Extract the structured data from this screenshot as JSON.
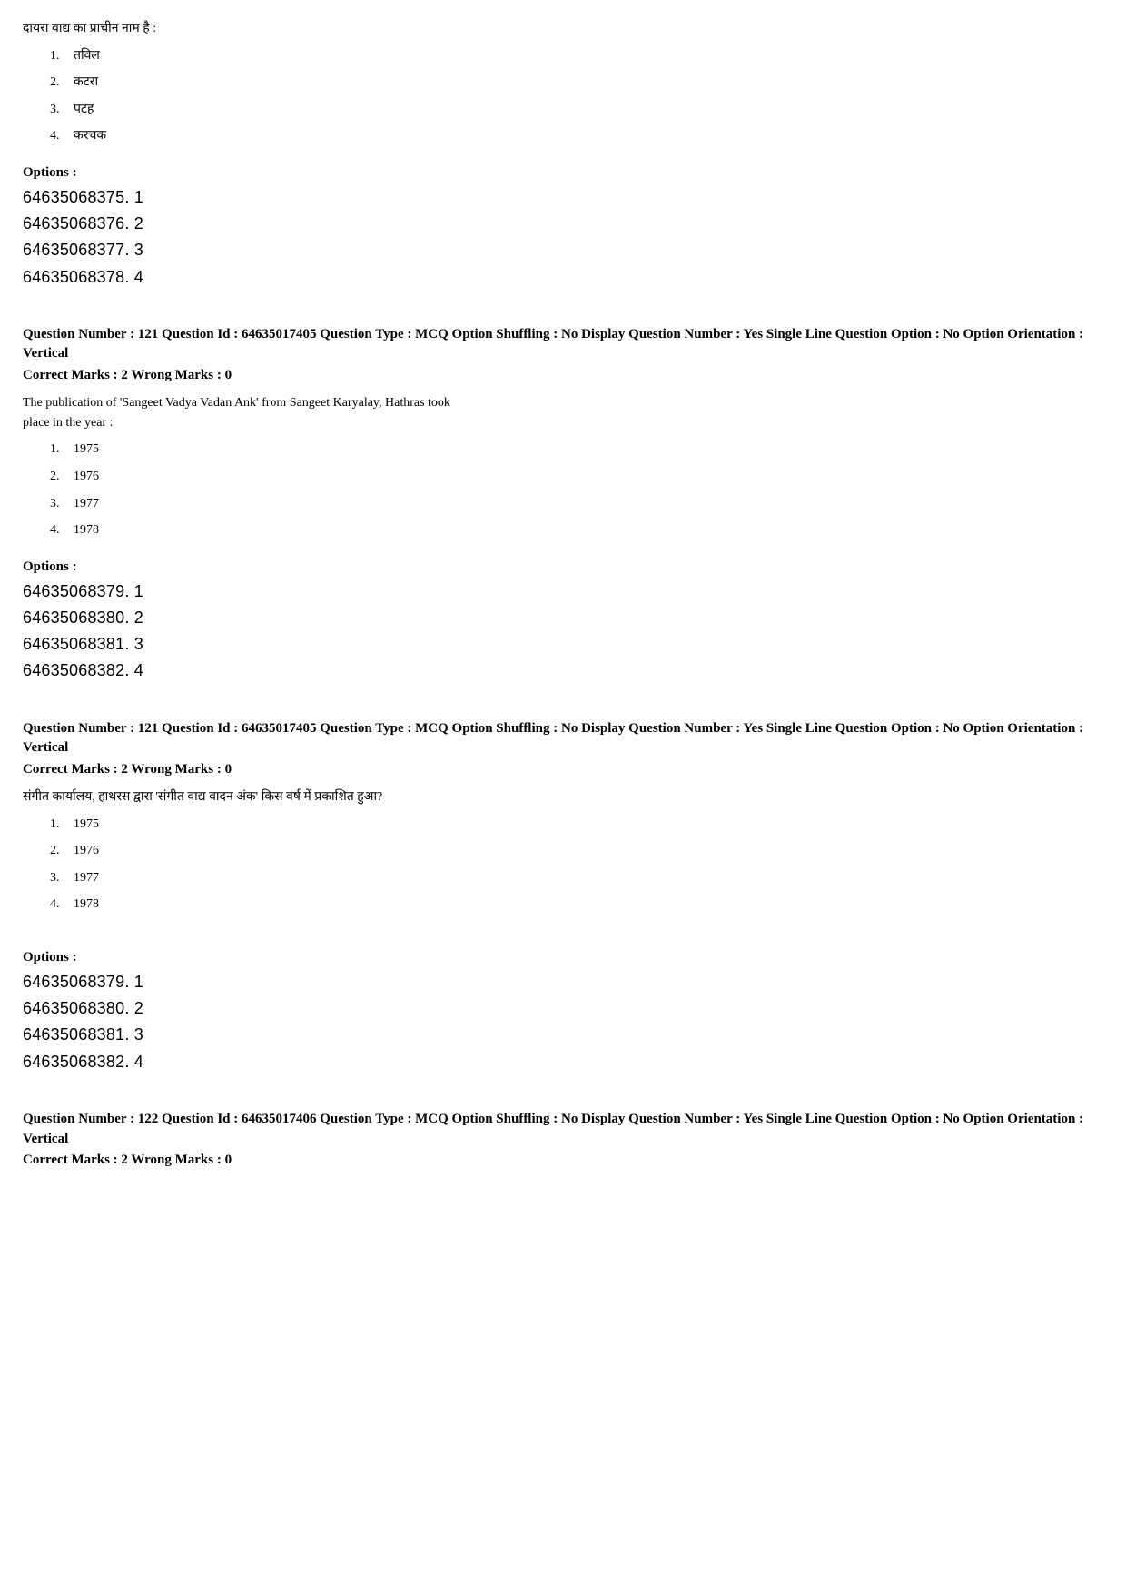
{
  "q120b": {
    "prompt": "दायरा वाद्य का प्राचीन नाम है :",
    "answers": [
      {
        "n": "1.",
        "t": "तविल"
      },
      {
        "n": "2.",
        "t": "कटरा"
      },
      {
        "n": "3.",
        "t": "पटह"
      },
      {
        "n": "4.",
        "t": "करचक"
      }
    ],
    "options_label": "Options :",
    "options": [
      "64635068375. 1",
      "64635068376. 2",
      "64635068377. 3",
      "64635068378. 4"
    ]
  },
  "q121a": {
    "meta": "Question Number : 121  Question Id : 64635017405  Question Type : MCQ  Option Shuffling : No  Display Question Number : Yes  Single Line Question Option : No  Option Orientation : Vertical",
    "marks": "Correct Marks : 2  Wrong Marks : 0",
    "prompt_l1": "The publication of 'Sangeet Vadya Vadan Ank' from Sangeet Karyalay, Hathras took",
    "prompt_l2": "place in the year :",
    "answers": [
      {
        "n": "1.",
        "t": "1975"
      },
      {
        "n": "2.",
        "t": "1976"
      },
      {
        "n": "3.",
        "t": "1977"
      },
      {
        "n": "4.",
        "t": "1978"
      }
    ],
    "options_label": "Options :",
    "options": [
      "64635068379. 1",
      "64635068380. 2",
      "64635068381. 3",
      "64635068382. 4"
    ]
  },
  "q121b": {
    "meta": "Question Number : 121  Question Id : 64635017405  Question Type : MCQ  Option Shuffling : No  Display Question Number : Yes  Single Line Question Option : No  Option Orientation : Vertical",
    "marks": "Correct Marks : 2  Wrong Marks : 0",
    "prompt": "संगीत कार्यालय, हाथरस द्वारा 'संगीत वाद्य वादन अंक' किस वर्ष में प्रकाशित हुआ?",
    "answers": [
      {
        "n": "1.",
        "t": "1975"
      },
      {
        "n": "2.",
        "t": "1976"
      },
      {
        "n": "3.",
        "t": "1977"
      },
      {
        "n": "4.",
        "t": "1978"
      }
    ],
    "options_label": "Options :",
    "options": [
      "64635068379. 1",
      "64635068380. 2",
      "64635068381. 3",
      "64635068382. 4"
    ]
  },
  "q122": {
    "meta": "Question Number : 122  Question Id : 64635017406  Question Type : MCQ  Option Shuffling : No  Display Question Number : Yes  Single Line Question Option : No  Option Orientation : Vertical",
    "marks": "Correct Marks : 2  Wrong Marks : 0"
  }
}
